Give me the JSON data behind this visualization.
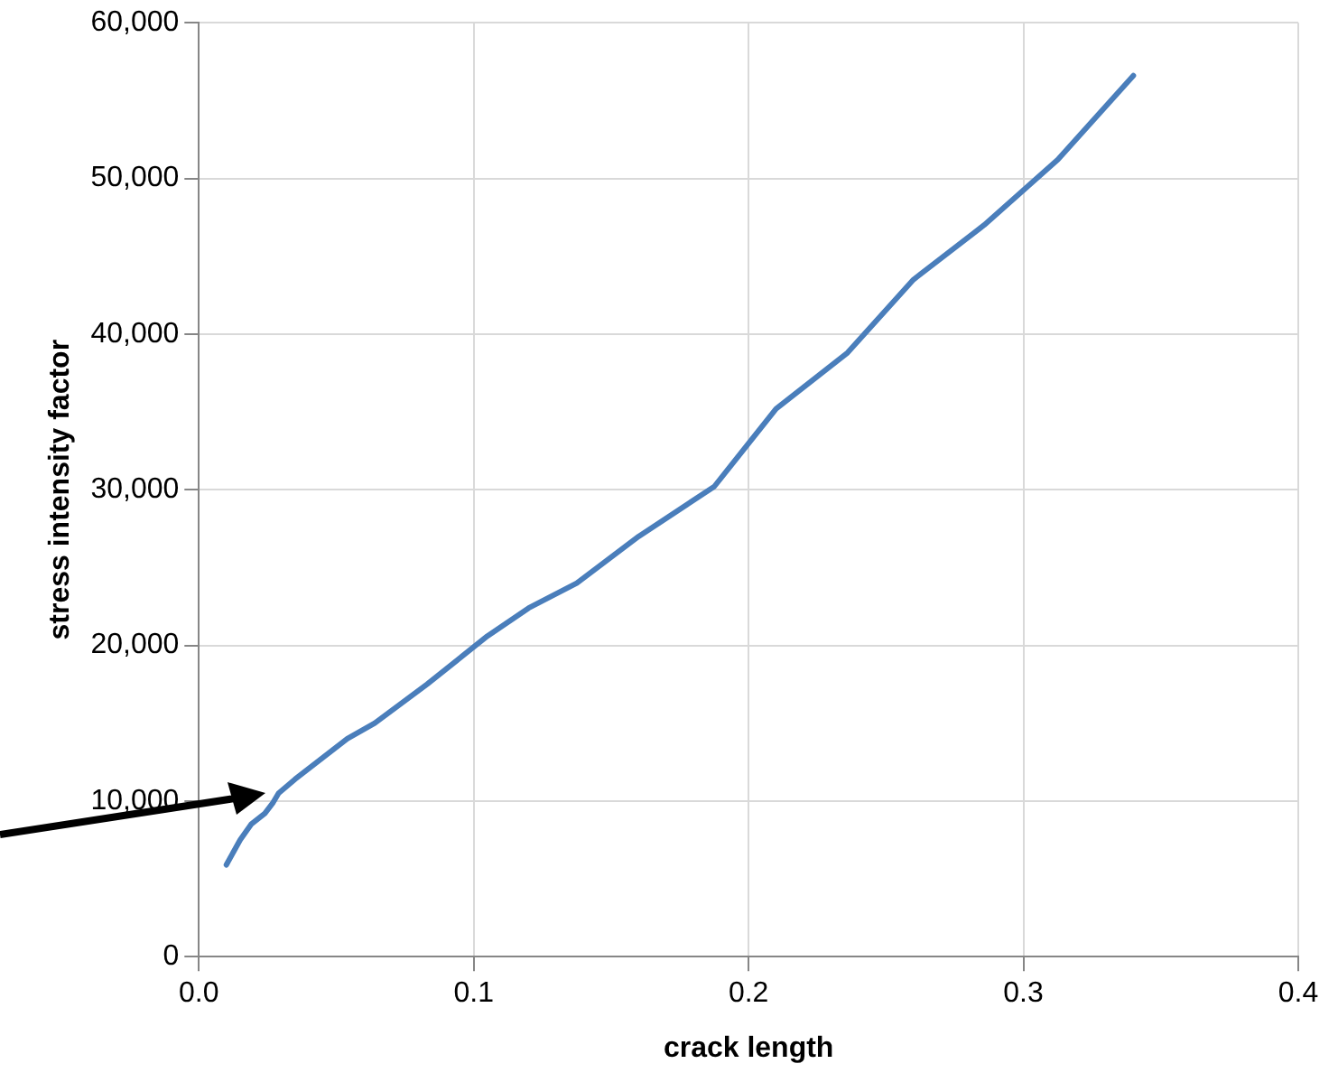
{
  "chart_data": {
    "type": "line",
    "xlabel": "crack length",
    "ylabel": "stress intensity factor",
    "x": [
      0.01,
      0.015,
      0.019,
      0.024,
      0.027,
      0.029,
      0.035,
      0.054,
      0.064,
      0.083,
      0.105,
      0.12,
      0.1375,
      0.16,
      0.1875,
      0.21,
      0.236,
      0.26,
      0.2857,
      0.3125,
      0.34
    ],
    "series": [
      {
        "color": "#4a7ebb",
        "values": [
          5900,
          7500,
          8500,
          9200,
          9900,
          10500,
          11400,
          14000,
          15000,
          17500,
          20600,
          22400,
          24000,
          27000,
          30200,
          35200,
          38800,
          43500,
          47000,
          51200,
          56600
        ]
      }
    ],
    "xlim": [
      0,
      0.4
    ],
    "xticks": [
      {
        "value": 0,
        "label": "0.0"
      },
      0.1,
      0.2,
      0.3,
      0.4
    ],
    "ylim": [
      0,
      60000
    ],
    "yticks": [
      {
        "value": 0,
        "label": "0"
      },
      {
        "value": 10000,
        "label": "10,000"
      },
      {
        "value": 20000,
        "label": "20,000"
      },
      {
        "value": 30000,
        "label": "30,000"
      },
      {
        "value": 40000,
        "label": "40,000"
      },
      {
        "value": 50000,
        "label": "50,000"
      },
      {
        "value": 60000,
        "label": "60,000"
      }
    ],
    "grid": true,
    "legend": false,
    "marker": "none",
    "line_style": "solid"
  }
}
